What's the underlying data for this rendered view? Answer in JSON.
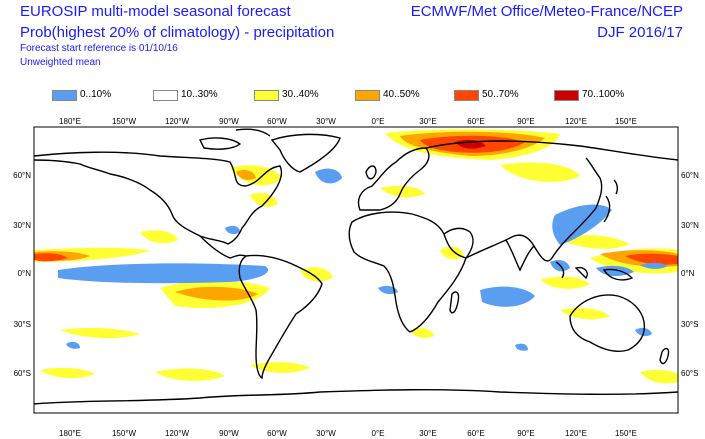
{
  "header": {
    "title": "EUROSIP multi-model seasonal forecast",
    "subtitle": "Prob(highest 20% of climatology) - precipitation",
    "forecast_ref": "Forecast start reference is 01/10/16",
    "mean_type": "Unweighted mean",
    "centres": "ECMWF/Met Office/Meteo-France/NCEP",
    "period": "DJF 2016/17"
  },
  "legend": [
    {
      "label": "0..10%",
      "color": "#5a9ef2"
    },
    {
      "label": "10..30%",
      "color": "#ffffff"
    },
    {
      "label": "30..40%",
      "color": "#ffff33"
    },
    {
      "label": "40..50%",
      "color": "#ffa500"
    },
    {
      "label": "50..70%",
      "color": "#ff4500"
    },
    {
      "label": "70..100%",
      "color": "#cc0000"
    }
  ],
  "axes": {
    "lon_labels": [
      "180°E",
      "150°W",
      "120°W",
      "90°W",
      "60°W",
      "30°W",
      "0°E",
      "30°E",
      "60°E",
      "90°E",
      "120°E",
      "150°E"
    ],
    "lat_labels": [
      "60°N",
      "30°N",
      "0°N",
      "30°S",
      "60°S"
    ]
  }
}
